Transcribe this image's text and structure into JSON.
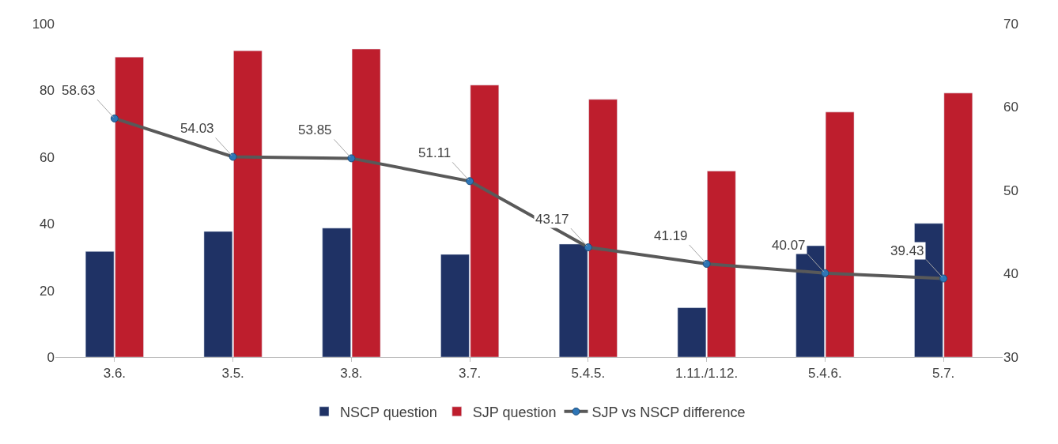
{
  "chart_data": {
    "type": "bar",
    "categories": [
      "3.6.",
      "3.5.",
      "3.8.",
      "3.7.",
      "5.4.5.",
      "1.11./1.12.",
      "5.4.6.",
      "5.7."
    ],
    "series": [
      {
        "name": "NSCP question",
        "color": "#1f3265",
        "values": [
          31.7,
          37.7,
          38.7,
          30.8,
          33.9,
          14.8,
          33.4,
          40.1
        ]
      },
      {
        "name": "SJP question",
        "color": "#be1e2d",
        "values": [
          90.0,
          91.9,
          92.4,
          81.6,
          77.3,
          55.8,
          73.5,
          79.2
        ]
      },
      {
        "name": "SJP vs NSCP difference",
        "type": "line",
        "axis": "y2",
        "color": "#595959",
        "marker": "circle",
        "data_labels": true,
        "values": [
          58.63,
          54.03,
          53.85,
          51.11,
          43.17,
          41.19,
          40.07,
          39.43
        ]
      }
    ],
    "ylim": [
      0,
      100
    ],
    "yticks": [
      0,
      20,
      40,
      60,
      80,
      100
    ],
    "y2lim": [
      30,
      70
    ],
    "y2ticks": [
      30,
      40,
      50,
      60,
      70
    ],
    "legend": "bottom"
  }
}
